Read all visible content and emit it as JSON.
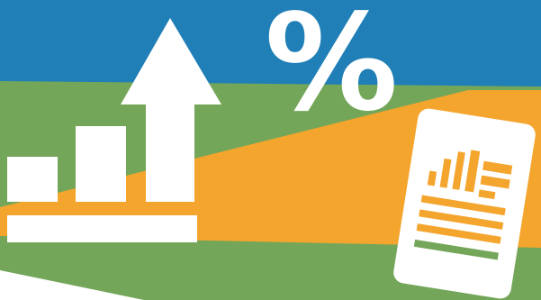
{
  "colors": {
    "sky": "#1f7fb6",
    "field": "#74a65a",
    "band": "#f4a52e",
    "white": "#ffffff"
  },
  "icons": [
    "bar-chart-up-arrow-icon",
    "percent-sign",
    "report-document-icon"
  ],
  "percent": {
    "symbol": "%"
  }
}
